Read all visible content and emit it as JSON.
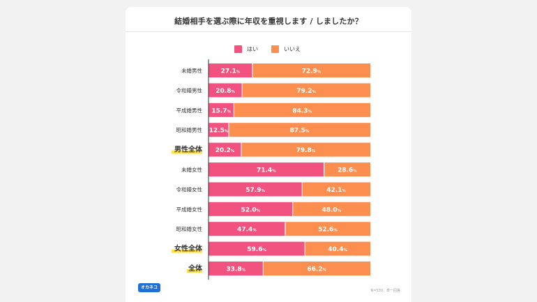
{
  "chart_data": {
    "type": "bar",
    "orientation": "horizontal",
    "stacked": true,
    "title": "結婚相手を選ぶ際に年収を重視します / しましたか？",
    "categories": [
      "未婚男性",
      "令和婚男性",
      "平成婚男性",
      "昭和婚男性",
      "男性全体",
      "未婚女性",
      "令和婚女性",
      "平成婚女性",
      "昭和婚女性",
      "女性全体",
      "全体"
    ],
    "highlighted_categories": [
      "男性全体",
      "女性全体",
      "全体"
    ],
    "series": [
      {
        "name": "はい",
        "color": "#f2527f",
        "values": [
          27.1,
          20.8,
          15.7,
          12.5,
          20.2,
          71.4,
          57.9,
          52.0,
          47.4,
          59.6,
          33.8
        ]
      },
      {
        "name": "いいえ",
        "color": "#fc8f4f",
        "values": [
          72.9,
          79.2,
          84.3,
          87.5,
          79.8,
          28.6,
          42.1,
          48.0,
          52.6,
          40.4,
          66.2
        ]
      }
    ],
    "unit": "%",
    "xlim": [
      0,
      100
    ],
    "legend": "top-center",
    "grid": false
  },
  "logo_text": "オカネコ",
  "footnote": "N=530、単一回答"
}
